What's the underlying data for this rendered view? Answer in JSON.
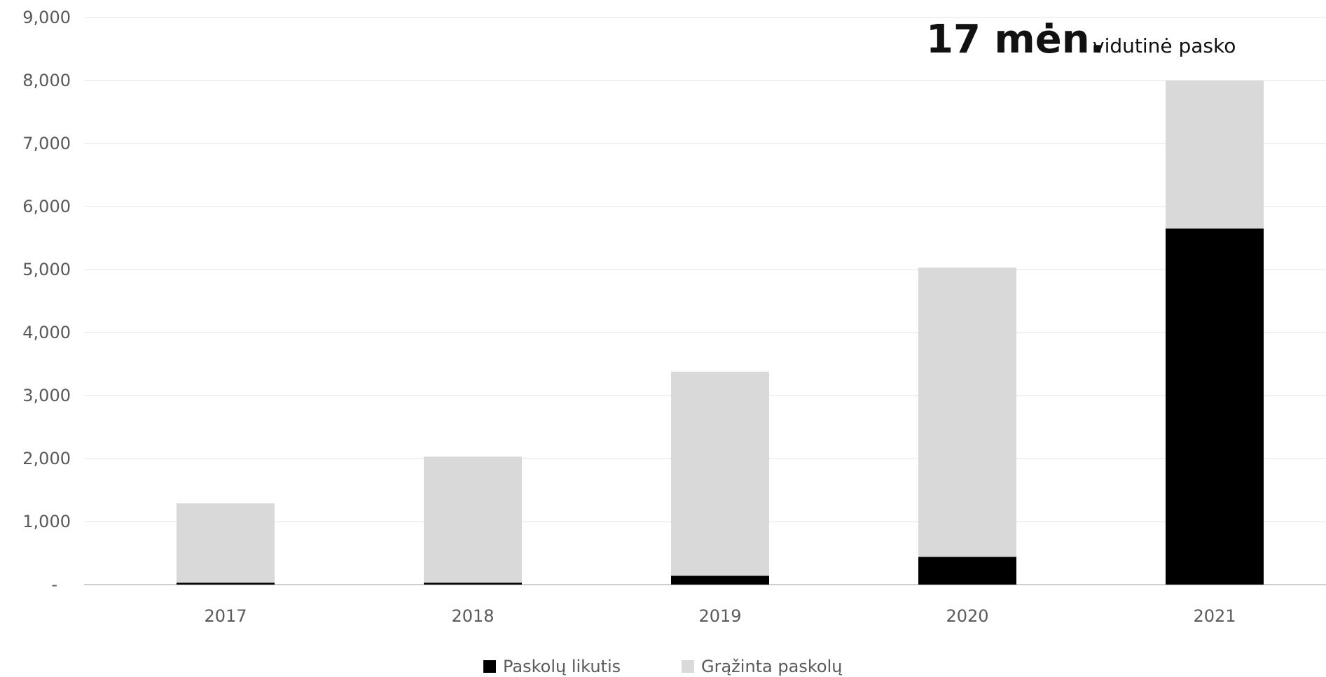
{
  "headline": {
    "value": "17 mėn.",
    "text": "vidutinė pasko"
  },
  "chart_data": {
    "type": "bar",
    "stacked": true,
    "categories": [
      "2017",
      "2018",
      "2019",
      "2020",
      "2021"
    ],
    "series": [
      {
        "name": "Paskolų likutis",
        "color": "#000000",
        "values": [
          30,
          30,
          140,
          440,
          5650
        ]
      },
      {
        "name": "Grąžinta paskolų",
        "color": "#d9d9d9",
        "values": [
          1260,
          2000,
          3240,
          4590,
          2350
        ]
      }
    ],
    "y_ticks": [
      "-",
      "1,000",
      "2,000",
      "3,000",
      "4,000",
      "5,000",
      "6,000",
      "7,000",
      "8,000",
      "9,000"
    ],
    "ylim": [
      0,
      9000
    ],
    "grid": true,
    "legend_position": "bottom",
    "title": "",
    "xlabel": "",
    "ylabel": ""
  }
}
